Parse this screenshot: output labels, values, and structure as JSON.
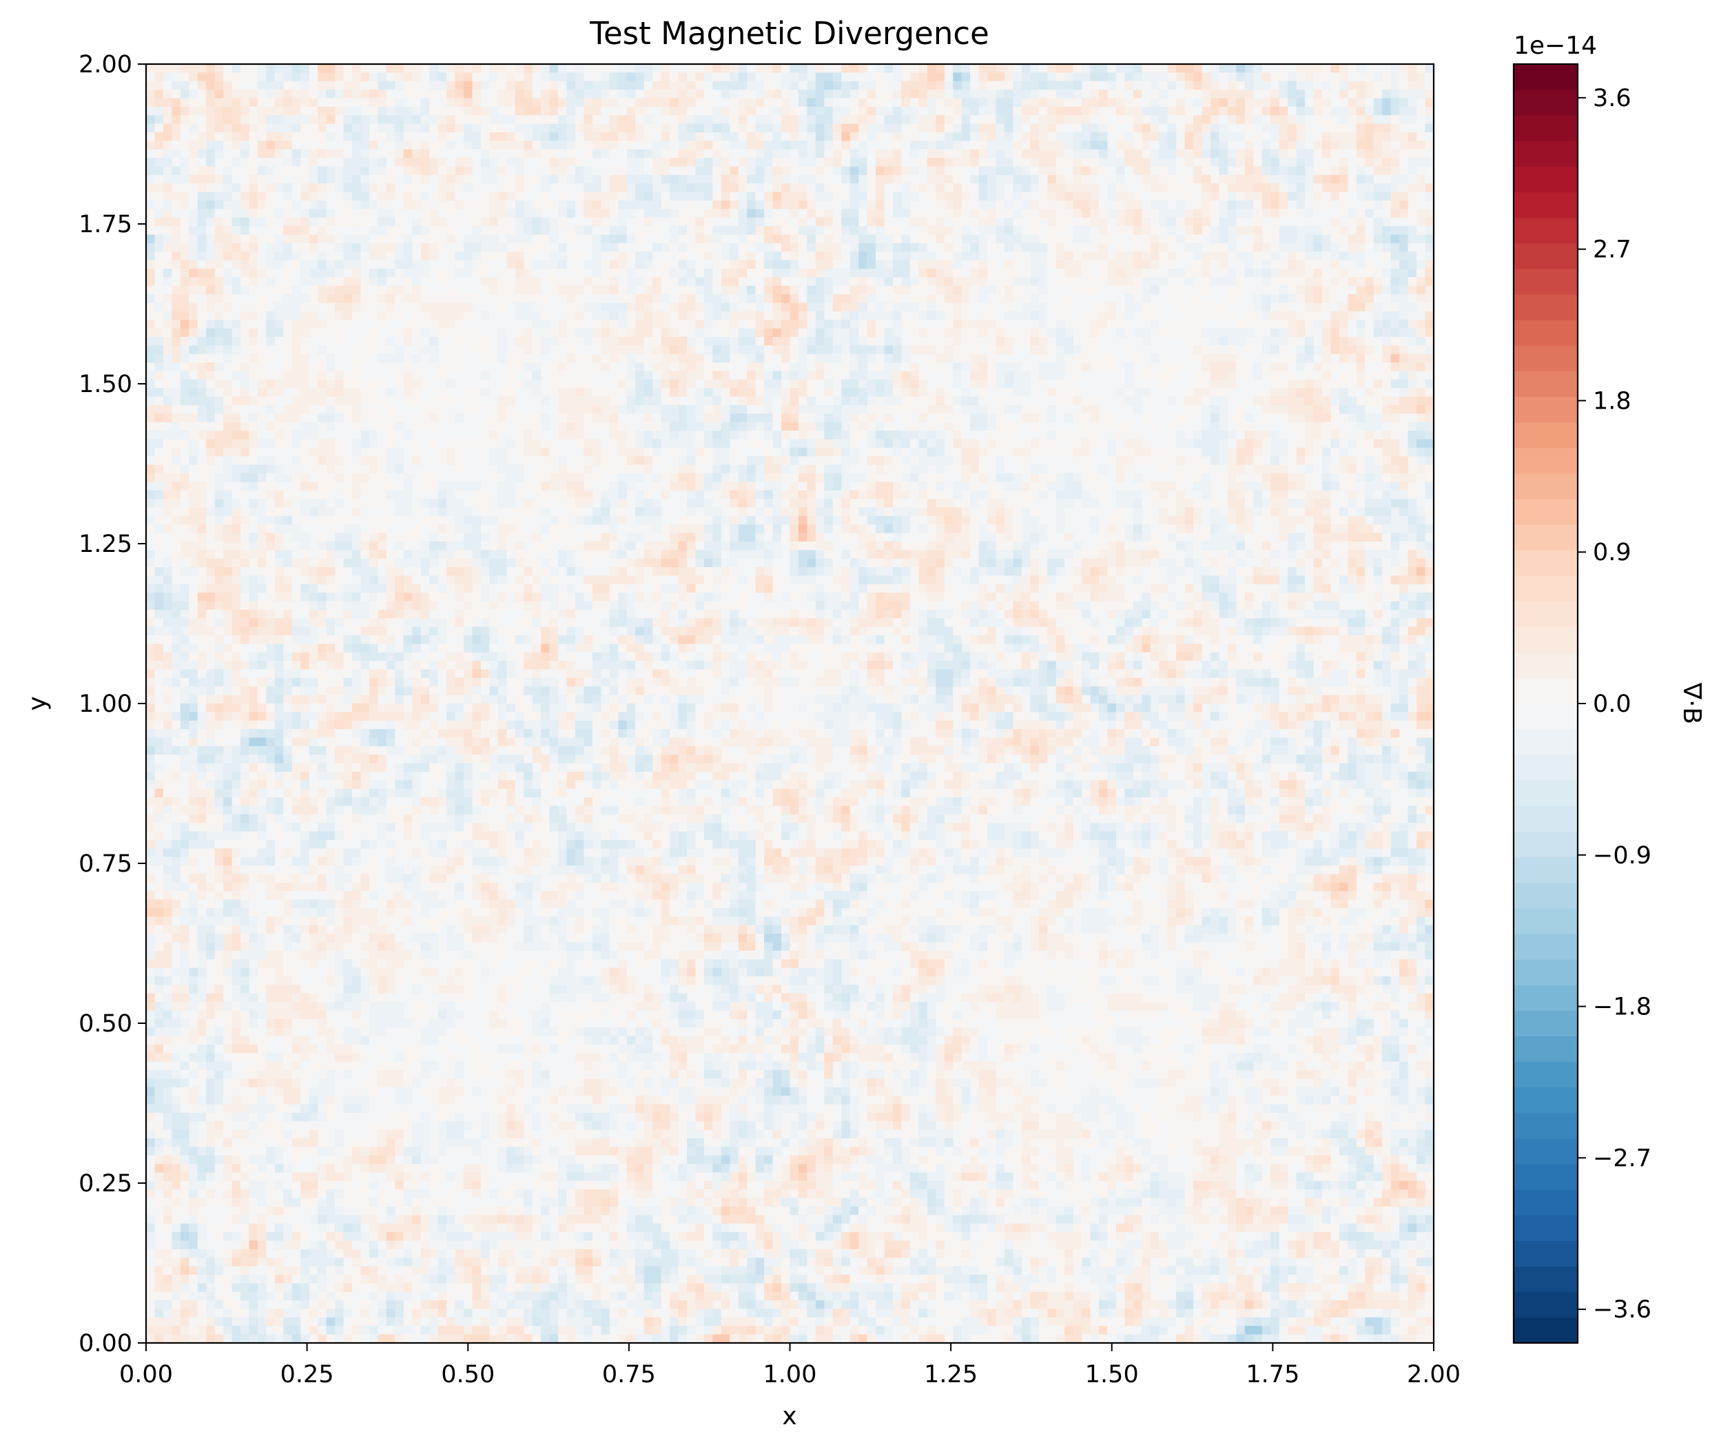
{
  "chart_data": {
    "type": "heatmap",
    "title": "Test Magnetic Divergence",
    "xlabel": "x",
    "ylabel": "y",
    "xlim": [
      0,
      2
    ],
    "ylim": [
      0,
      2
    ],
    "x_ticks": [
      0,
      0.25,
      0.5,
      0.75,
      1.0,
      1.25,
      1.5,
      1.75,
      2.0
    ],
    "x_tick_labels": [
      "0.00",
      "0.25",
      "0.50",
      "0.75",
      "1.00",
      "1.25",
      "1.50",
      "1.75",
      "2.00"
    ],
    "y_ticks": [
      0,
      0.25,
      0.5,
      0.75,
      1.0,
      1.25,
      1.5,
      1.75,
      2.0
    ],
    "y_tick_labels": [
      "0.00",
      "0.25",
      "0.50",
      "0.75",
      "1.00",
      "1.25",
      "1.50",
      "1.75",
      "2.00"
    ],
    "grid": false,
    "colormap": "RdBu_r",
    "colorbar": {
      "label": "∇·B",
      "scale_label": "1e−14",
      "range": [
        -3.8,
        3.8
      ],
      "levels": 50,
      "ticks": [
        -3.6,
        -2.7,
        -1.8,
        -0.9,
        0.0,
        0.9,
        1.8,
        2.7,
        3.6
      ],
      "tick_labels": [
        "−3.6",
        "−2.7",
        "−1.8",
        "−0.9",
        "0.0",
        "0.9",
        "1.8",
        "2.7",
        "3.6"
      ],
      "placement": "right"
    },
    "field_description": "noise-like divergence field on order of 1e-14, periodic pattern with quiet centers near (0.5,0.5),(1.5,0.5),(0.5,1.5),(1.5,1.5),(1,1) and active rings between them",
    "value_scale": 1e-14
  }
}
